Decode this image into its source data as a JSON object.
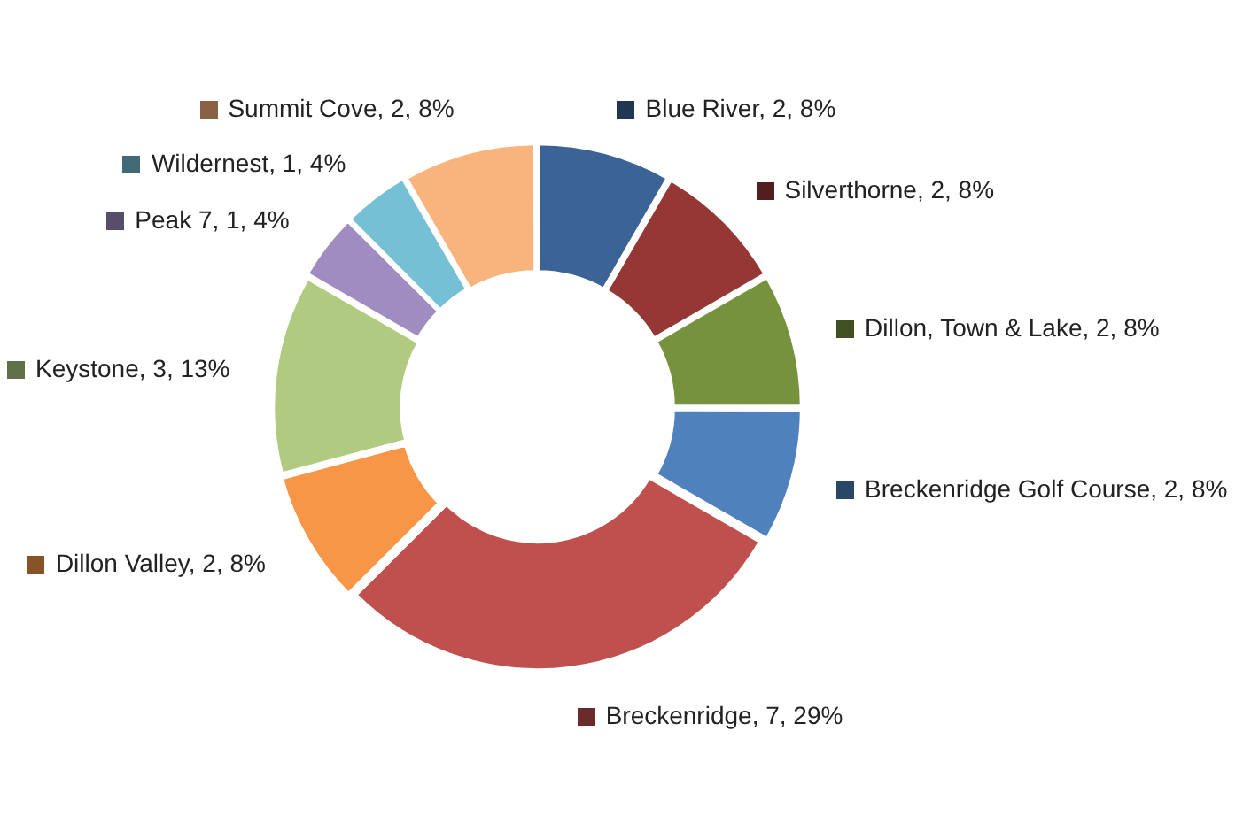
{
  "chart_data": {
    "type": "donut",
    "categories": [
      "Blue River",
      "Silverthorne",
      "Dillon, Town & Lake",
      "Breckenridge Golf Course",
      "Breckenridge",
      "Dillon Valley",
      "Keystone",
      "Peak 7",
      "Wildernest",
      "Summit Cove"
    ],
    "values": [
      2,
      2,
      2,
      2,
      7,
      2,
      3,
      1,
      1,
      2
    ],
    "value_labels": [
      "2, 8%",
      "2, 8%",
      "2, 8%",
      "2, 8%",
      "7, 29%",
      "2, 8%",
      "3, 13%",
      "1, 4%",
      "1, 4%",
      "2, 8%"
    ],
    "colors": [
      "#3b6396",
      "#953735",
      "#76923c",
      "#4f81bd",
      "#c0504d",
      "#f79646",
      "#b0cb7f",
      "#a08cc0",
      "#76c0d6",
      "#f9b37d"
    ],
    "legend": false
  }
}
